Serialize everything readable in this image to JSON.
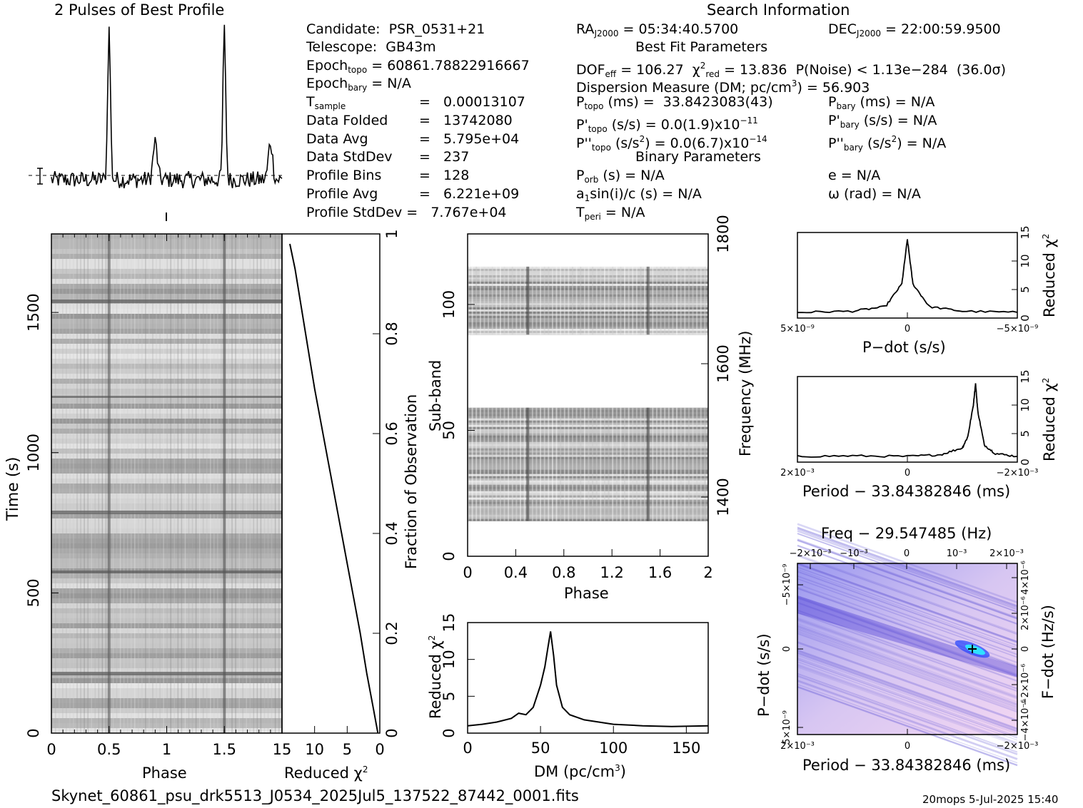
{
  "header": {
    "profile_title": "2 Pulses of Best Profile",
    "search_title": "Search Information"
  },
  "info": {
    "candidate": "Candidate:  PSR_0531+21",
    "telescope": "Telescope:  GB43m",
    "epoch_topo": "Epoch_topo = 60861.78822916667",
    "epoch_bary": "Epoch_bary = N/A",
    "t_sample": "T_sample  =  0.00013107",
    "data_folded": "Data Folded  =  13742080",
    "data_avg": "Data Avg  =  5.795e+04",
    "data_stddev": "Data StdDev  =  237",
    "profile_bins": "Profile Bins  =  128",
    "profile_avg": "Profile Avg  =  6.221e+09",
    "profile_stddev": "Profile StdDev  =  7.767e+04",
    "ra": "RA_J2000 = 05:34:40.5700",
    "dec": "DEC_J2000 = 22:00:59.9500",
    "best_fit_title": "Best Fit Parameters",
    "dof": "DOF_eff = 106.27  χ²_red = 13.836  P(Noise) < 1.13e−284  (36.0σ)",
    "dm": "Dispersion Measure (DM; pc/cm³) = 56.903",
    "p_topo": "P_topo (ms) =  33.8423083(43)",
    "p_bary": "P_bary (ms) = N/A",
    "pd_topo": "P'_topo (s/s) = 0.0(1.9)x10⁻¹¹",
    "pd_bary": "P'_bary (s/s) = N/A",
    "pdd_topo": "P''_topo (s/s²) = 0.0(6.7)x10⁻¹⁴",
    "pdd_bary": "P''_bary (s/s²) = N/A",
    "binary_title": "Binary Parameters",
    "p_orb": "P_orb (s) = N/A",
    "e": "e = N/A",
    "a1sini": "a1sin(i)/c (s) = N/A",
    "omega": "ω (rad) = N/A",
    "t_peri": "T_peri = N/A"
  },
  "footer": {
    "filename": "Skynet_60861_psu_drk5513_J0534_2025Jul5_137522_87442_0001.fits",
    "stamp": "20mops  5-Jul-2025 15:40"
  },
  "chart_data": [
    {
      "type": "line",
      "name": "profile",
      "title": "2 Pulses of Best Profile",
      "x_range": [
        0,
        2
      ],
      "peaks": [
        {
          "phase": 0.5,
          "rel_height": 1.0
        },
        {
          "phase": 0.9,
          "rel_height": 0.25
        },
        {
          "phase": 1.5,
          "rel_height": 1.0
        },
        {
          "phase": 1.9,
          "rel_height": 0.25
        }
      ]
    },
    {
      "type": "heatmap",
      "name": "time-phase",
      "xlabel": "Phase",
      "ylabel": "Time (s)",
      "xlim": [
        0,
        2
      ],
      "ylim": [
        0,
        1780
      ],
      "x_ticks": [
        "0",
        "0.5",
        "1",
        "1.5"
      ],
      "y_ticks": [
        "0",
        "500",
        "1000",
        "1500"
      ],
      "pulse_phases": [
        0.5,
        1.5
      ]
    },
    {
      "type": "line",
      "name": "reduced-chi2-vs-time",
      "xlabel": "Reduced χ²",
      "ylabel": "Fraction of Observation",
      "x_ticks": [
        "15",
        "10",
        "5",
        "0"
      ],
      "y_ticks": [
        "0",
        "0.2",
        "0.4",
        "0.6",
        "0.8",
        "1"
      ],
      "x": [
        0.3,
        1.0,
        2.0,
        3.0,
        4.0,
        5.0,
        6.0,
        7.0,
        8.0,
        9.0,
        10.0,
        11.0,
        12.0,
        13.0,
        13.8
      ],
      "y": [
        0.0,
        0.05,
        0.12,
        0.2,
        0.27,
        0.34,
        0.41,
        0.48,
        0.55,
        0.62,
        0.69,
        0.77,
        0.85,
        0.93,
        0.98
      ]
    },
    {
      "type": "heatmap",
      "name": "subband-phase",
      "xlabel": "Phase",
      "ylabel": "Sub-band",
      "y2label": "Frequency (MHz)",
      "xlim": [
        0,
        2
      ],
      "ylim": [
        0,
        128
      ],
      "x_ticks": [
        "0",
        "0.4",
        "0.8",
        "1.2",
        "1.6",
        "2"
      ],
      "y_ticks": [
        "0",
        "50",
        "100"
      ],
      "y2_ticks": [
        "1400",
        "1600",
        "1800"
      ],
      "data_bands": [
        [
          14,
          59
        ],
        [
          88,
          115
        ]
      ]
    },
    {
      "type": "line",
      "name": "dm-curve",
      "xlabel": "DM (pc/cm³)",
      "ylabel": "Reduced χ²",
      "xlim": [
        0,
        165
      ],
      "ylim": [
        0,
        15
      ],
      "x_ticks": [
        "0",
        "50",
        "100",
        "150"
      ],
      "y_ticks": [
        "0",
        "5",
        "10",
        "15"
      ],
      "x": [
        0,
        10,
        20,
        30,
        35,
        40,
        45,
        50,
        53,
        55,
        56.9,
        59,
        61,
        65,
        70,
        80,
        100,
        120,
        140,
        165
      ],
      "y": [
        1.0,
        1.2,
        1.5,
        2.0,
        2.7,
        2.5,
        3.5,
        6.5,
        9.0,
        11.5,
        13.8,
        10.5,
        6.5,
        3.5,
        2.5,
        1.8,
        1.2,
        1.0,
        0.9,
        1.0
      ]
    },
    {
      "type": "line",
      "name": "pdot-curve",
      "xlabel": "P−dot (s/s)",
      "ylabel": "Reduced χ²",
      "ylim": [
        0,
        15
      ],
      "x_ticks": [
        "5×10⁻⁹",
        "0",
        "−5×10⁻⁹"
      ],
      "y_ticks": [
        "0",
        "5",
        "10",
        "15"
      ],
      "x": [
        -1.0,
        -0.5,
        -0.2,
        -0.05,
        0.0,
        0.05,
        0.2,
        0.5,
        1.0
      ],
      "y": [
        1.0,
        1.2,
        2.0,
        6.0,
        13.8,
        6.0,
        2.0,
        1.2,
        1.0
      ]
    },
    {
      "type": "line",
      "name": "period-curve",
      "xlabel": "Period − 33.84382846 (ms)",
      "ylabel": "Reduced χ²",
      "ylim": [
        0,
        15
      ],
      "x_ticks": [
        "2×10⁻³",
        "0",
        "−2×10⁻³"
      ],
      "y_ticks": [
        "0",
        "5",
        "10",
        "15"
      ],
      "x": [
        -1.0,
        -0.5,
        0.0,
        0.3,
        0.5,
        0.55,
        0.6,
        0.62,
        0.64,
        0.7,
        0.8,
        1.0
      ],
      "y": [
        1.0,
        1.1,
        1.0,
        1.3,
        2.5,
        4.5,
        10.0,
        13.8,
        9.0,
        3.0,
        1.5,
        1.0
      ]
    },
    {
      "type": "heatmap",
      "name": "period-pdot-plane",
      "title": "Freq − 29.547485 (Hz)",
      "xlabel": "Period − 33.84382846 (ms)",
      "ylabel": "P−dot (s/s)",
      "y2label": "F−dot (Hz/s)",
      "x_ticks": [
        "2×10⁻³",
        "0",
        "−2×10⁻³"
      ],
      "x2_ticks": [
        "−2×10⁻³",
        "−10⁻³",
        "0",
        "10⁻³",
        "2×10⁻³"
      ],
      "y_ticks": [
        "−5×10⁻⁹",
        "0",
        "5×10⁻⁹"
      ],
      "y2_ticks": [
        "4×10⁻⁶",
        "2×10⁻⁶",
        "0",
        "−2×10⁻⁶",
        "−4×10⁻⁶"
      ]
    }
  ]
}
